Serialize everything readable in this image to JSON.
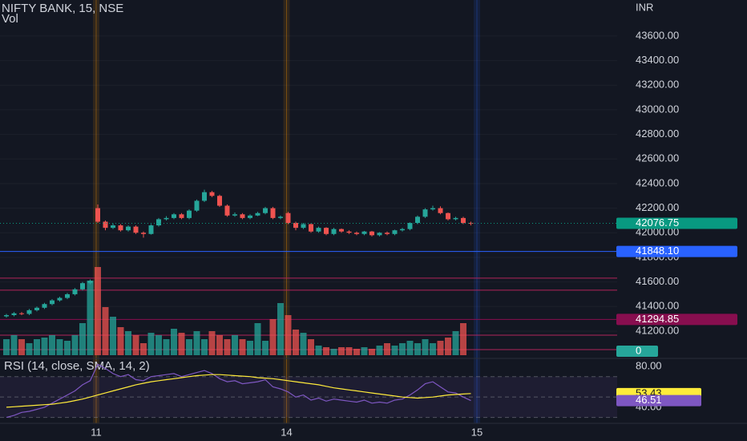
{
  "chart_data": [
    {
      "type": "candlestick",
      "title": "NIFTY BANK, 15, NSE",
      "volume_title": "Vol",
      "currency": "INR",
      "xlim": [
        -0.842,
        80.21
      ],
      "xticks": [
        {
          "value": 12,
          "label": "11"
        },
        {
          "value": 37,
          "label": "14"
        },
        {
          "value": 62,
          "label": "15"
        }
      ],
      "ylim": [
        40991,
        43893
      ],
      "yticks": [
        {
          "value": 41200,
          "label": "41200.00"
        },
        {
          "value": 41400,
          "label": "41400.00"
        },
        {
          "value": 41600,
          "label": "41600.00"
        },
        {
          "value": 41800,
          "label": "41800.00"
        },
        {
          "value": 42000,
          "label": "42000.00"
        },
        {
          "value": 42200,
          "label": "42200.00"
        },
        {
          "value": 42400,
          "label": "42400.00"
        },
        {
          "value": 42600,
          "label": "42600.00"
        },
        {
          "value": 42800,
          "label": "42800.00"
        },
        {
          "value": 43000,
          "label": "43000.00"
        },
        {
          "value": 43200,
          "label": "43200.00"
        },
        {
          "value": 43400,
          "label": "43400.00"
        },
        {
          "value": 43600,
          "label": "43600.00"
        }
      ],
      "up_color": "#26a69a",
      "down_color": "#ef5350",
      "last_price_color": "#089981",
      "volume_ylim": [
        0,
        443
      ],
      "open": [
        41320,
        41330,
        41345,
        41340,
        41370,
        41390,
        41420,
        41450,
        41470,
        41500,
        41540,
        41590,
        42200,
        42090,
        42040,
        42060,
        42020,
        42050,
        42000,
        41990,
        42060,
        42110,
        42120,
        42150,
        42120,
        42180,
        42260,
        42330,
        42300,
        42220,
        42140,
        42150,
        42120,
        42140,
        42160,
        42200,
        42120,
        42160,
        42080,
        42040,
        42070,
        42010,
        42040,
        41990,
        42030,
        42010,
        42000,
        41990,
        42010,
        41980,
        42000,
        41990,
        42020,
        42030,
        42080,
        42130,
        42190,
        42200,
        42160,
        42110,
        42120,
        42080
      ],
      "high": [
        41340,
        41355,
        41355,
        41380,
        41400,
        41430,
        41460,
        41480,
        41510,
        41550,
        41600,
        41620,
        42230,
        42100,
        42075,
        42070,
        42060,
        42060,
        42010,
        42070,
        42120,
        42135,
        42160,
        42160,
        42190,
        42270,
        42350,
        42340,
        42310,
        42230,
        42165,
        42160,
        42150,
        42170,
        42210,
        42210,
        42140,
        42170,
        42090,
        42080,
        42075,
        42050,
        42045,
        42040,
        42035,
        42020,
        42010,
        42015,
        42015,
        42005,
        42010,
        42025,
        42040,
        42085,
        42140,
        42200,
        42220,
        42215,
        42165,
        42130,
        42130,
        42090
      ],
      "low": [
        41310,
        41320,
        41330,
        41330,
        41360,
        41380,
        41410,
        41440,
        41460,
        41490,
        41530,
        41580,
        42080,
        42020,
        42030,
        42010,
        42010,
        41990,
        41960,
        41985,
        42050,
        42100,
        42110,
        42110,
        42110,
        42170,
        42250,
        42290,
        42210,
        42130,
        42130,
        42110,
        42110,
        42135,
        42150,
        42110,
        42110,
        42070,
        42020,
        42030,
        42000,
        42000,
        41980,
        41980,
        42000,
        41990,
        41980,
        41980,
        41970,
        41970,
        41980,
        41980,
        42010,
        42020,
        42070,
        42120,
        42180,
        42150,
        42100,
        42100,
        42070,
        42060
      ],
      "close": [
        41330,
        41345,
        41340,
        41370,
        41390,
        41420,
        41450,
        41470,
        41500,
        41540,
        41590,
        41610,
        42090,
        42040,
        42060,
        42020,
        42050,
        42000,
        41990,
        42060,
        42110,
        42120,
        42150,
        42120,
        42180,
        42260,
        42330,
        42300,
        42220,
        42140,
        42150,
        42120,
        42140,
        42160,
        42200,
        42120,
        42130,
        42080,
        42040,
        42070,
        42010,
        42040,
        41990,
        42030,
        42010,
        42000,
        41990,
        42010,
        41980,
        42000,
        41990,
        42020,
        42030,
        42080,
        42130,
        42190,
        42200,
        42160,
        42110,
        42120,
        42080,
        42076.75
      ],
      "volume": [
        20,
        25,
        20,
        15,
        20,
        22,
        25,
        20,
        18,
        25,
        40,
        93,
        110,
        60,
        48,
        35,
        30,
        25,
        15,
        28,
        25,
        20,
        33,
        28,
        20,
        30,
        20,
        30,
        25,
        20,
        25,
        20,
        18,
        40,
        18,
        45,
        65,
        50,
        32,
        28,
        20,
        12,
        10,
        8,
        10,
        10,
        8,
        10,
        8,
        12,
        15,
        12,
        15,
        18,
        15,
        20,
        15,
        18,
        22,
        30,
        40,
        0
      ],
      "horizontal_lines": [
        {
          "value": 41848.1,
          "label": "41848.10",
          "color": "#2962ff"
        },
        {
          "value": 41631,
          "color": "#b0245a"
        },
        {
          "value": 41533,
          "color": "#b0245a"
        },
        {
          "value": 41294.85,
          "label": "41294.85",
          "color": "#880e4f"
        },
        {
          "value": 41167,
          "color": "#b0245a"
        },
        {
          "value": 41050,
          "color": "#b0245a"
        }
      ]
    },
    {
      "type": "line",
      "title": "RSI (14, close, SMA, 14, 2)",
      "xlim": [
        -0.842,
        80.21
      ],
      "ylim": [
        25,
        85.5
      ],
      "yticks": [
        {
          "value": 40,
          "label": "40.00"
        },
        {
          "value": 80,
          "label": "80.00"
        }
      ],
      "levels": [
        70,
        50,
        30
      ],
      "series": [
        {
          "name": "RSI",
          "color": "#7e57c2",
          "values": [
            30,
            32,
            35,
            36,
            38,
            40,
            44,
            48,
            52,
            56,
            62,
            66,
            82,
            78,
            73,
            70,
            72,
            67,
            66,
            70,
            71,
            72,
            73,
            70,
            72,
            74,
            76,
            73,
            68,
            65,
            66,
            63,
            64,
            65,
            67,
            60,
            58,
            55,
            50,
            52,
            47,
            49,
            46,
            48,
            47,
            46,
            45,
            47,
            44,
            45,
            44,
            47,
            48,
            52,
            57,
            63,
            65,
            60,
            55,
            54,
            50,
            46.51
          ]
        },
        {
          "name": "SMA",
          "color": "#ffeb3b",
          "values": [
            40,
            40.5,
            41,
            41.5,
            42,
            42.5,
            43,
            44,
            45,
            46.5,
            48,
            50,
            52,
            54,
            56,
            58,
            60,
            62,
            63.5,
            65,
            66,
            67,
            68,
            69,
            70,
            71,
            71.5,
            72,
            72,
            71.5,
            71,
            70.5,
            70,
            69,
            68.5,
            68,
            67,
            66,
            65,
            64,
            63,
            62,
            60.5,
            59,
            58,
            57,
            56,
            55,
            54,
            53,
            52,
            51,
            50,
            49.5,
            49,
            49.5,
            50,
            51,
            52,
            52.5,
            53,
            53.43
          ]
        }
      ]
    }
  ]
}
